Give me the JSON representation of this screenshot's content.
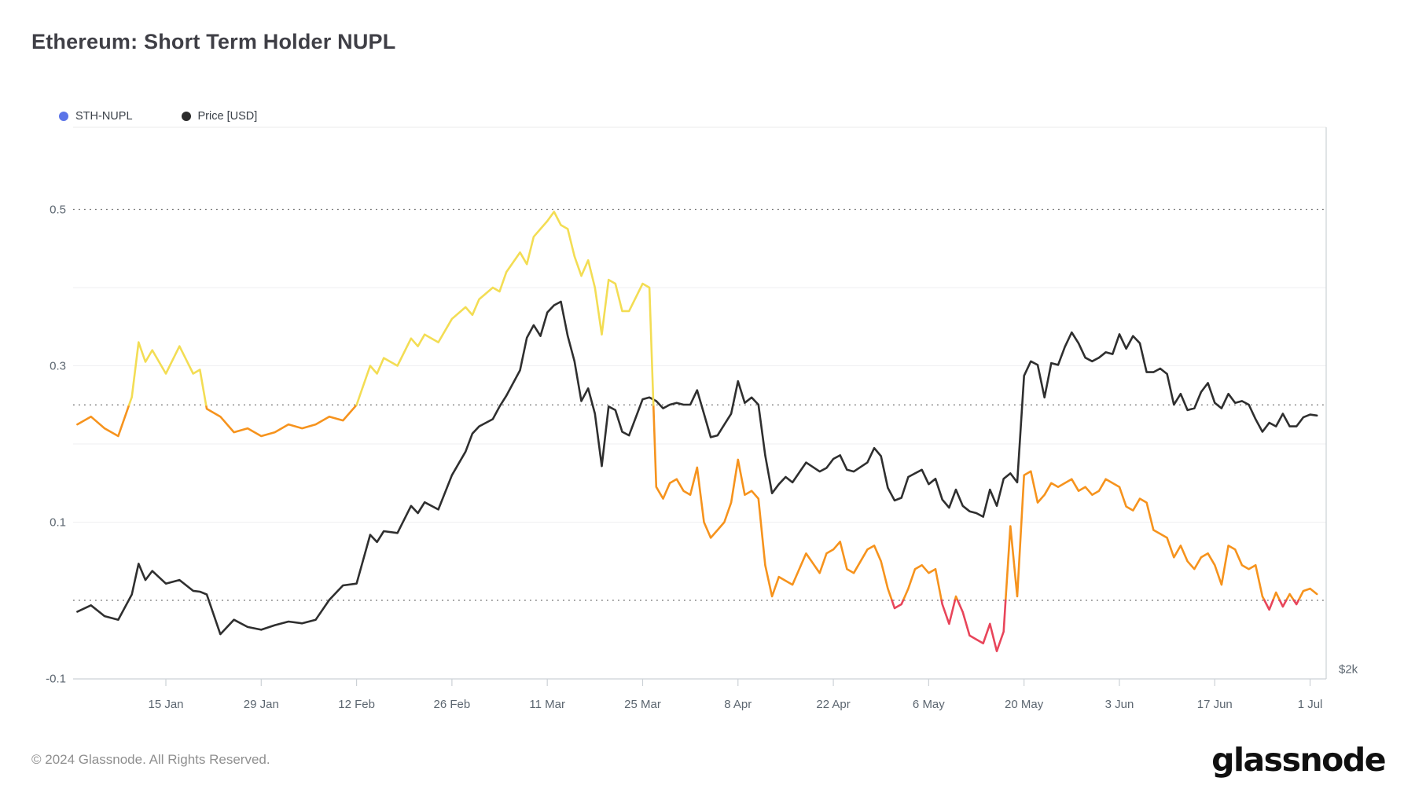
{
  "title": "Ethereum: Short Term Holder NUPL",
  "legend": {
    "items": [
      {
        "label": "STH-NUPL",
        "color": "#5b74e8"
      },
      {
        "label": "Price [USD]",
        "color": "#2b2b2b"
      }
    ]
  },
  "footer": {
    "copyright": "© 2024 Glassnode. All Rights Reserved.",
    "brand": "glassnode"
  },
  "colors": {
    "nupl_positive_low": "#f6931d",
    "nupl_positive_high": "#f3dd54",
    "nupl_negative": "#e8455a",
    "price_line": "#2f2f2f",
    "grid": "#efeff1",
    "dotted": "#6e6e6e",
    "border": "#ccd1d6",
    "border_top": "#ebebeb"
  },
  "chart_data": {
    "type": "line",
    "title": "Ethereum: Short Term Holder NUPL",
    "x_unit": "day of year 2024",
    "y_left_label": "STH-NUPL",
    "y_right_label": "Price [USD]",
    "y_left_ticks": [
      {
        "label": "0.5",
        "value": 0.5
      },
      {
        "label": "0.3",
        "value": 0.3
      },
      {
        "label": "0.1",
        "value": 0.1
      },
      {
        "label": "-0.1",
        "value": -0.1
      }
    ],
    "y_right_ticks": [
      {
        "label": "$2k",
        "value": 2000
      }
    ],
    "x_ticks": [
      {
        "label": "15 Jan",
        "day": 15
      },
      {
        "label": "29 Jan",
        "day": 29
      },
      {
        "label": "12 Feb",
        "day": 43
      },
      {
        "label": "26 Feb",
        "day": 57
      },
      {
        "label": "11 Mar",
        "day": 71
      },
      {
        "label": "25 Mar",
        "day": 85
      },
      {
        "label": "8 Apr",
        "day": 99
      },
      {
        "label": "22 Apr",
        "day": 113
      },
      {
        "label": "6 May",
        "day": 127
      },
      {
        "label": "20 May",
        "day": 141
      },
      {
        "label": "3 Jun",
        "day": 155
      },
      {
        "label": "17 Jun",
        "day": 169
      },
      {
        "label": "1 Jul",
        "day": 183
      }
    ],
    "threshold_dotted_lines": [
      0.5,
      0.25,
      0
    ],
    "solid_gridlines": [
      0.4,
      0.3,
      0.2,
      0.1
    ],
    "y_left_range": [
      -0.1,
      0.605
    ],
    "nupl_color_bands": [
      {
        "range": "below 0",
        "color": "#e8455a"
      },
      {
        "range": "0 to 0.25",
        "color": "#f6931d"
      },
      {
        "range": "0.25 to 0.5",
        "color": "#f3dd54"
      }
    ],
    "days": [
      2,
      4,
      6,
      8,
      10,
      11,
      12,
      13,
      15,
      17,
      19,
      20,
      21,
      23,
      25,
      27,
      29,
      31,
      33,
      35,
      37,
      39,
      41,
      43,
      45,
      46,
      47,
      49,
      51,
      52,
      53,
      55,
      57,
      59,
      60,
      61,
      63,
      64,
      65,
      67,
      68,
      69,
      70,
      71,
      72,
      73,
      74,
      75,
      76,
      77,
      78,
      79,
      80,
      81,
      82,
      83,
      85,
      86,
      87,
      88,
      89,
      90,
      91,
      92,
      93,
      94,
      95,
      96,
      97,
      98,
      99,
      100,
      101,
      102,
      103,
      104,
      105,
      106,
      107,
      109,
      111,
      112,
      113,
      114,
      115,
      116,
      118,
      119,
      120,
      121,
      122,
      123,
      124,
      125,
      126,
      127,
      128,
      129,
      130,
      131,
      132,
      133,
      134,
      135,
      136,
      137,
      138,
      139,
      140,
      141,
      142,
      143,
      144,
      145,
      146,
      147,
      148,
      149,
      150,
      151,
      152,
      153,
      154,
      155,
      156,
      157,
      158,
      159,
      160,
      161,
      162,
      163,
      164,
      165,
      166,
      167,
      168,
      169,
      170,
      171,
      172,
      173,
      174,
      175,
      176,
      177,
      178,
      179,
      180,
      181,
      182,
      183,
      184
    ],
    "series": [
      {
        "name": "STH-NUPL",
        "axis": "left",
        "values": [
          0.225,
          0.235,
          0.22,
          0.21,
          0.26,
          0.33,
          0.305,
          0.32,
          0.29,
          0.325,
          0.29,
          0.295,
          0.245,
          0.235,
          0.215,
          0.22,
          0.21,
          0.215,
          0.225,
          0.22,
          0.225,
          0.235,
          0.23,
          0.25,
          0.3,
          0.29,
          0.31,
          0.3,
          0.335,
          0.325,
          0.34,
          0.33,
          0.36,
          0.375,
          0.365,
          0.385,
          0.4,
          0.395,
          0.42,
          0.445,
          0.43,
          0.465,
          0.475,
          0.485,
          0.497,
          0.48,
          0.475,
          0.44,
          0.415,
          0.435,
          0.4,
          0.34,
          0.41,
          0.405,
          0.37,
          0.37,
          0.405,
          0.4,
          0.145,
          0.13,
          0.15,
          0.155,
          0.14,
          0.135,
          0.17,
          0.1,
          0.08,
          0.09,
          0.1,
          0.125,
          0.18,
          0.135,
          0.14,
          0.13,
          0.045,
          0.005,
          0.03,
          0.025,
          0.02,
          0.06,
          0.035,
          0.06,
          0.065,
          0.075,
          0.04,
          0.035,
          0.065,
          0.07,
          0.05,
          0.015,
          -0.01,
          -0.005,
          0.015,
          0.04,
          0.045,
          0.035,
          0.04,
          -0.005,
          -0.03,
          0.005,
          -0.015,
          -0.045,
          -0.05,
          -0.055,
          -0.03,
          -0.065,
          -0.04,
          0.095,
          0.005,
          0.16,
          0.165,
          0.125,
          0.135,
          0.15,
          0.145,
          0.15,
          0.155,
          0.14,
          0.145,
          0.135,
          0.14,
          0.155,
          0.15,
          0.145,
          0.12,
          0.115,
          0.13,
          0.125,
          0.09,
          0.085,
          0.08,
          0.055,
          0.07,
          0.05,
          0.04,
          0.055,
          0.06,
          0.045,
          0.02,
          0.07,
          0.065,
          0.045,
          0.04,
          0.045,
          0.005,
          -0.012,
          0.01,
          -0.008,
          0.008,
          -0.005,
          0.012,
          0.015,
          0.008
        ]
      },
      {
        "name": "Price [USD]",
        "axis": "right",
        "values": [
          2355,
          2390,
          2330,
          2310,
          2450,
          2620,
          2530,
          2580,
          2510,
          2530,
          2470,
          2465,
          2450,
          2230,
          2310,
          2270,
          2255,
          2280,
          2300,
          2290,
          2310,
          2420,
          2500,
          2510,
          2780,
          2740,
          2800,
          2790,
          2940,
          2900,
          2960,
          2920,
          3110,
          3240,
          3340,
          3380,
          3420,
          3490,
          3550,
          3690,
          3870,
          3940,
          3880,
          4010,
          4050,
          4070,
          3880,
          3740,
          3520,
          3590,
          3450,
          3160,
          3490,
          3470,
          3350,
          3330,
          3530,
          3540,
          3520,
          3480,
          3500,
          3510,
          3500,
          3500,
          3580,
          3450,
          3320,
          3330,
          3390,
          3450,
          3630,
          3510,
          3540,
          3500,
          3220,
          3010,
          3060,
          3100,
          3070,
          3180,
          3130,
          3150,
          3200,
          3220,
          3140,
          3130,
          3180,
          3260,
          3215,
          3040,
          2970,
          2985,
          3100,
          3120,
          3140,
          3060,
          3090,
          2975,
          2930,
          3030,
          2940,
          2910,
          2900,
          2880,
          3030,
          2940,
          3090,
          3120,
          3070,
          3660,
          3740,
          3720,
          3540,
          3730,
          3720,
          3820,
          3900,
          3840,
          3760,
          3740,
          3760,
          3790,
          3780,
          3890,
          3810,
          3880,
          3840,
          3680,
          3680,
          3700,
          3670,
          3500,
          3560,
          3470,
          3480,
          3570,
          3620,
          3510,
          3480,
          3560,
          3510,
          3520,
          3500,
          3420,
          3350,
          3400,
          3380,
          3450,
          3380,
          3380,
          3430,
          3445,
          3440
        ]
      }
    ]
  }
}
